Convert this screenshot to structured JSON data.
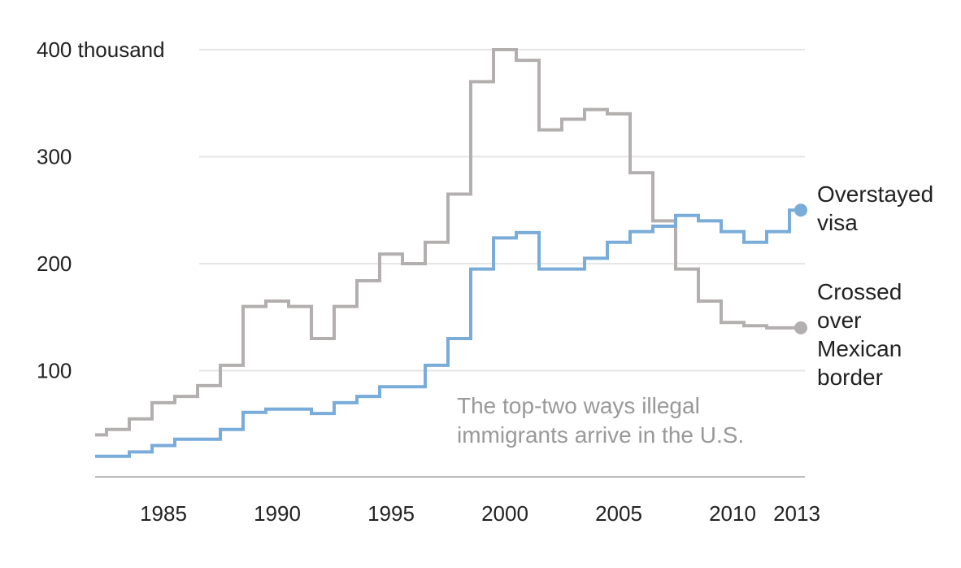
{
  "chart_data": {
    "type": "line",
    "step": true,
    "title": "",
    "xlabel": "",
    "ylabel": "",
    "ylim": [
      0,
      400
    ],
    "xlim": [
      1982,
      2013
    ],
    "y_ticks": [
      {
        "value": 100,
        "label": "100"
      },
      {
        "value": 200,
        "label": "200"
      },
      {
        "value": 300,
        "label": "300"
      },
      {
        "value": 400,
        "label": "400 thousand"
      }
    ],
    "x_ticks": [
      {
        "value": 1985,
        "label": "1985"
      },
      {
        "value": 1990,
        "label": "1990"
      },
      {
        "value": 1995,
        "label": "1995"
      },
      {
        "value": 2000,
        "label": "2000"
      },
      {
        "value": 2005,
        "label": "2005"
      },
      {
        "value": 2010,
        "label": "2010"
      },
      {
        "value": 2013,
        "label": "2013"
      }
    ],
    "series": [
      {
        "name": "Crossed over Mexican border",
        "label_lines": [
          "Crossed",
          "over",
          "Mexican",
          "border"
        ],
        "color": "#b3afaf",
        "x": [
          1982,
          1983,
          1984,
          1985,
          1986,
          1987,
          1988,
          1989,
          1990,
          1991,
          1992,
          1993,
          1994,
          1995,
          1996,
          1997,
          1998,
          1999,
          2000,
          2001,
          2002,
          2003,
          2004,
          2005,
          2006,
          2007,
          2008,
          2009,
          2010,
          2011,
          2012,
          2013
        ],
        "values": [
          40,
          45,
          55,
          70,
          76,
          86,
          105,
          160,
          165,
          160,
          130,
          160,
          184,
          209,
          200,
          220,
          265,
          370,
          400,
          390,
          325,
          335,
          344,
          340,
          285,
          240,
          195,
          165,
          145,
          142,
          140,
          140
        ]
      },
      {
        "name": "Overstayed visa",
        "label_lines": [
          "Overstayed",
          "visa"
        ],
        "color": "#79acd8",
        "x": [
          1982,
          1983,
          1984,
          1985,
          1986,
          1987,
          1988,
          1989,
          1990,
          1991,
          1992,
          1993,
          1994,
          1995,
          1996,
          1997,
          1998,
          1999,
          2000,
          2001,
          2002,
          2003,
          2004,
          2005,
          2006,
          2007,
          2008,
          2009,
          2010,
          2011,
          2012,
          2013
        ],
        "values": [
          20,
          20,
          24,
          30,
          36,
          36,
          45,
          61,
          64,
          64,
          60,
          70,
          76,
          85,
          85,
          105,
          130,
          195,
          224,
          229,
          195,
          195,
          205,
          220,
          230,
          235,
          245,
          240,
          230,
          220,
          230,
          250
        ]
      }
    ],
    "annotation_lines": [
      "The top-two ways illegal",
      "immigrants arrive in the U.S."
    ],
    "grid": true
  }
}
